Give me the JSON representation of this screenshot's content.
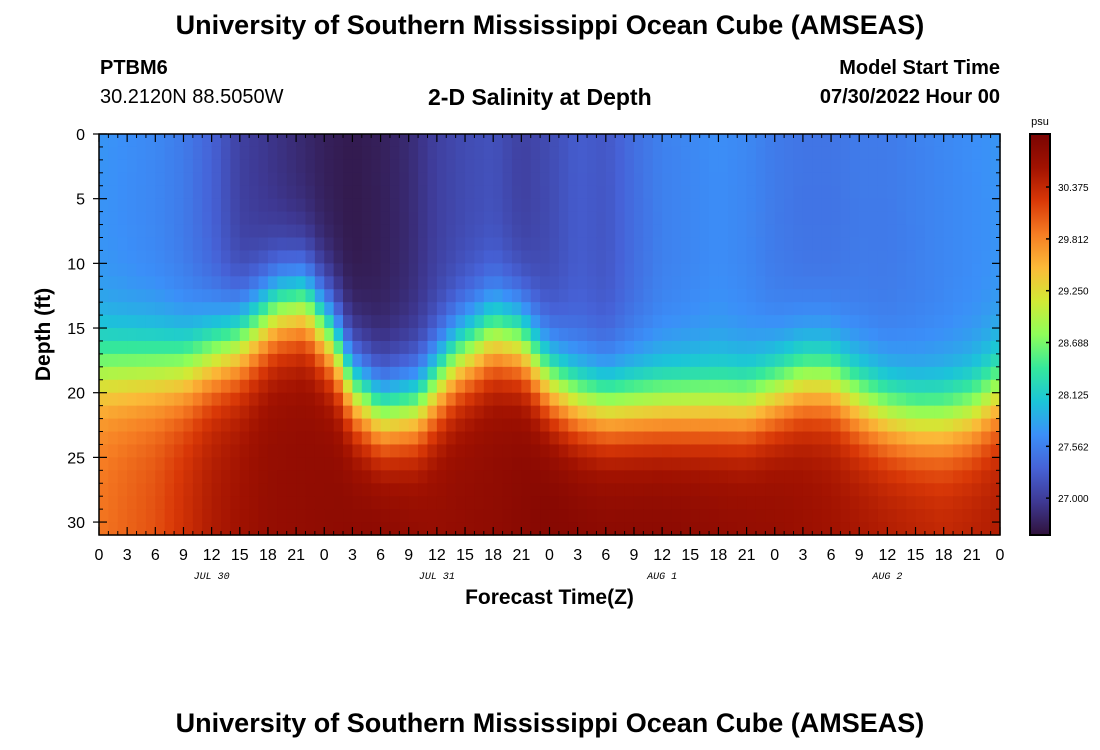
{
  "header": {
    "title": "University of Southern Mississippi Ocean Cube (AMSEAS)",
    "station_id": "PTBM6",
    "coords": "30.2120N  88.5050W",
    "subtitle": "2-D Salinity at Depth",
    "model_start_label": "Model Start Time",
    "model_start_value": "07/30/2022 Hour 00"
  },
  "footer": {
    "title": "University of Southern Mississippi Ocean Cube (AMSEAS)"
  },
  "colors": {
    "palette": [
      "#30123b",
      "#3e3994",
      "#4662d7",
      "#3b8ff8",
      "#1bc5d8",
      "#35e89b",
      "#8efe59",
      "#d2e935",
      "#fbb938",
      "#f67d23",
      "#d93807",
      "#a11201",
      "#7a0403"
    ]
  },
  "chart_data": {
    "type": "heatmap",
    "title": "2-D Salinity at Depth",
    "xlabel": "Forecast Time(Z)",
    "ylabel": "Depth (ft)",
    "x_range_hours": [
      0,
      96
    ],
    "ylim": [
      0,
      31
    ],
    "y_ticks": [
      0,
      5,
      10,
      15,
      20,
      25,
      30
    ],
    "x_tick_labels": [
      "0",
      "3",
      "6",
      "9",
      "12",
      "15",
      "18",
      "21",
      "0",
      "3",
      "6",
      "9",
      "12",
      "15",
      "18",
      "21",
      "0",
      "3",
      "6",
      "9",
      "12",
      "15",
      "18",
      "21",
      "0",
      "3",
      "6",
      "9",
      "12",
      "15",
      "18",
      "21",
      "0"
    ],
    "date_labels": [
      {
        "label": "JUL 30",
        "hour": 12
      },
      {
        "label": "JUL 31",
        "hour": 36
      },
      {
        "label": "AUG 1",
        "hour": 60
      },
      {
        "label": "AUG 2",
        "hour": 84
      }
    ],
    "colorbar": {
      "unit": "psu",
      "min": 26.6,
      "max": 30.95,
      "tick_values": [
        27.0,
        27.562,
        28.125,
        28.688,
        29.25,
        29.812,
        30.375
      ],
      "tick_labels": [
        "27.000",
        "27.562",
        "28.125",
        "28.688",
        "29.250",
        "29.812",
        "30.375"
      ]
    },
    "halocline": {
      "hours": [
        0,
        6,
        9,
        15,
        19,
        22,
        25,
        27,
        30,
        34,
        38,
        42,
        45,
        48,
        51,
        54,
        57,
        60,
        63,
        66,
        69,
        72,
        75,
        78,
        81,
        84,
        87,
        90,
        93,
        96
      ],
      "depth_ft": [
        18,
        18,
        18,
        16,
        13.5,
        13,
        16,
        19.5,
        21.5,
        21,
        17.5,
        15.5,
        16,
        19,
        20.5,
        21,
        21,
        21,
        21,
        21,
        21,
        20,
        19,
        19,
        20.5,
        21.5,
        22,
        22,
        21.5,
        20
      ]
    },
    "surface_layer": {
      "hours": [
        0,
        6,
        9,
        12,
        15,
        18,
        21,
        24,
        27,
        30,
        33,
        36,
        39,
        42,
        45,
        48,
        51,
        54,
        57,
        60,
        63,
        66,
        69,
        72,
        75,
        78,
        81,
        84,
        87,
        90,
        93,
        96
      ],
      "salinity_psu": [
        27.7,
        27.6,
        27.5,
        27.3,
        27.0,
        26.9,
        26.8,
        26.7,
        26.65,
        26.7,
        26.8,
        27.0,
        27.1,
        27.15,
        27.0,
        27.1,
        27.25,
        27.2,
        27.4,
        27.55,
        27.6,
        27.65,
        27.6,
        27.5,
        27.45,
        27.45,
        27.5,
        27.5,
        27.55,
        27.6,
        27.65,
        27.7
      ]
    },
    "bottom_layer": {
      "hours": [
        0,
        6,
        12,
        18,
        24,
        30,
        36,
        42,
        48,
        54,
        60,
        66,
        72,
        78,
        84,
        90,
        96
      ],
      "salinity_psu": [
        29.9,
        30.1,
        30.5,
        30.7,
        30.75,
        30.8,
        30.7,
        30.75,
        30.85,
        30.8,
        30.8,
        30.75,
        30.7,
        30.6,
        30.5,
        30.4,
        30.5
      ]
    }
  }
}
